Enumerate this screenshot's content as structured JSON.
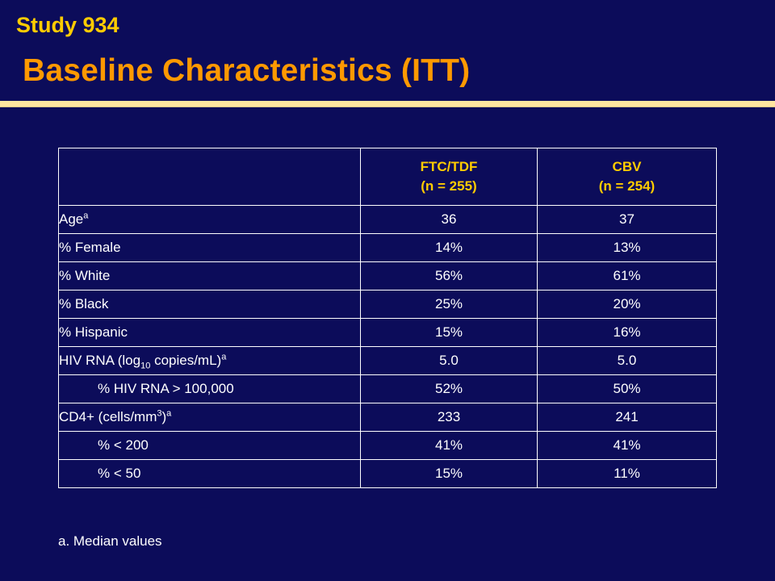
{
  "header": {
    "study": "Study 934",
    "title": "Baseline Characteristics (ITT)"
  },
  "table": {
    "columns": [
      {
        "name": "FTC/TDF",
        "n": "(n = 255)"
      },
      {
        "name": "CBV",
        "n": "(n = 254)"
      }
    ],
    "rows": [
      {
        "label": "Age",
        "sup": "a",
        "values": [
          "36",
          "37"
        ]
      },
      {
        "label": "% Female",
        "values": [
          "14%",
          "13%"
        ]
      },
      {
        "label": "% White",
        "values": [
          "56%",
          "61%"
        ]
      },
      {
        "label": "% Black",
        "values": [
          "25%",
          "20%"
        ]
      },
      {
        "label": "% Hispanic",
        "values": [
          "15%",
          "16%"
        ]
      },
      {
        "label_pre": "HIV RNA (log",
        "label_sub": "10",
        "label_post": " copies/mL)",
        "sup": "a",
        "values": [
          "5.0",
          "5.0"
        ]
      },
      {
        "label": "% HIV RNA > 100,000",
        "values": [
          "52%",
          "50%"
        ]
      },
      {
        "label_pre": "CD4+ (cells/mm",
        "label_sup": "3",
        "label_post": ")",
        "sup": "a",
        "values": [
          "233",
          "241"
        ]
      },
      {
        "label": "% < 200",
        "values": [
          "41%",
          "41%"
        ]
      },
      {
        "label": "% < 50",
        "values": [
          "15%",
          "11%"
        ]
      }
    ]
  },
  "footnote": "a.  Median values"
}
